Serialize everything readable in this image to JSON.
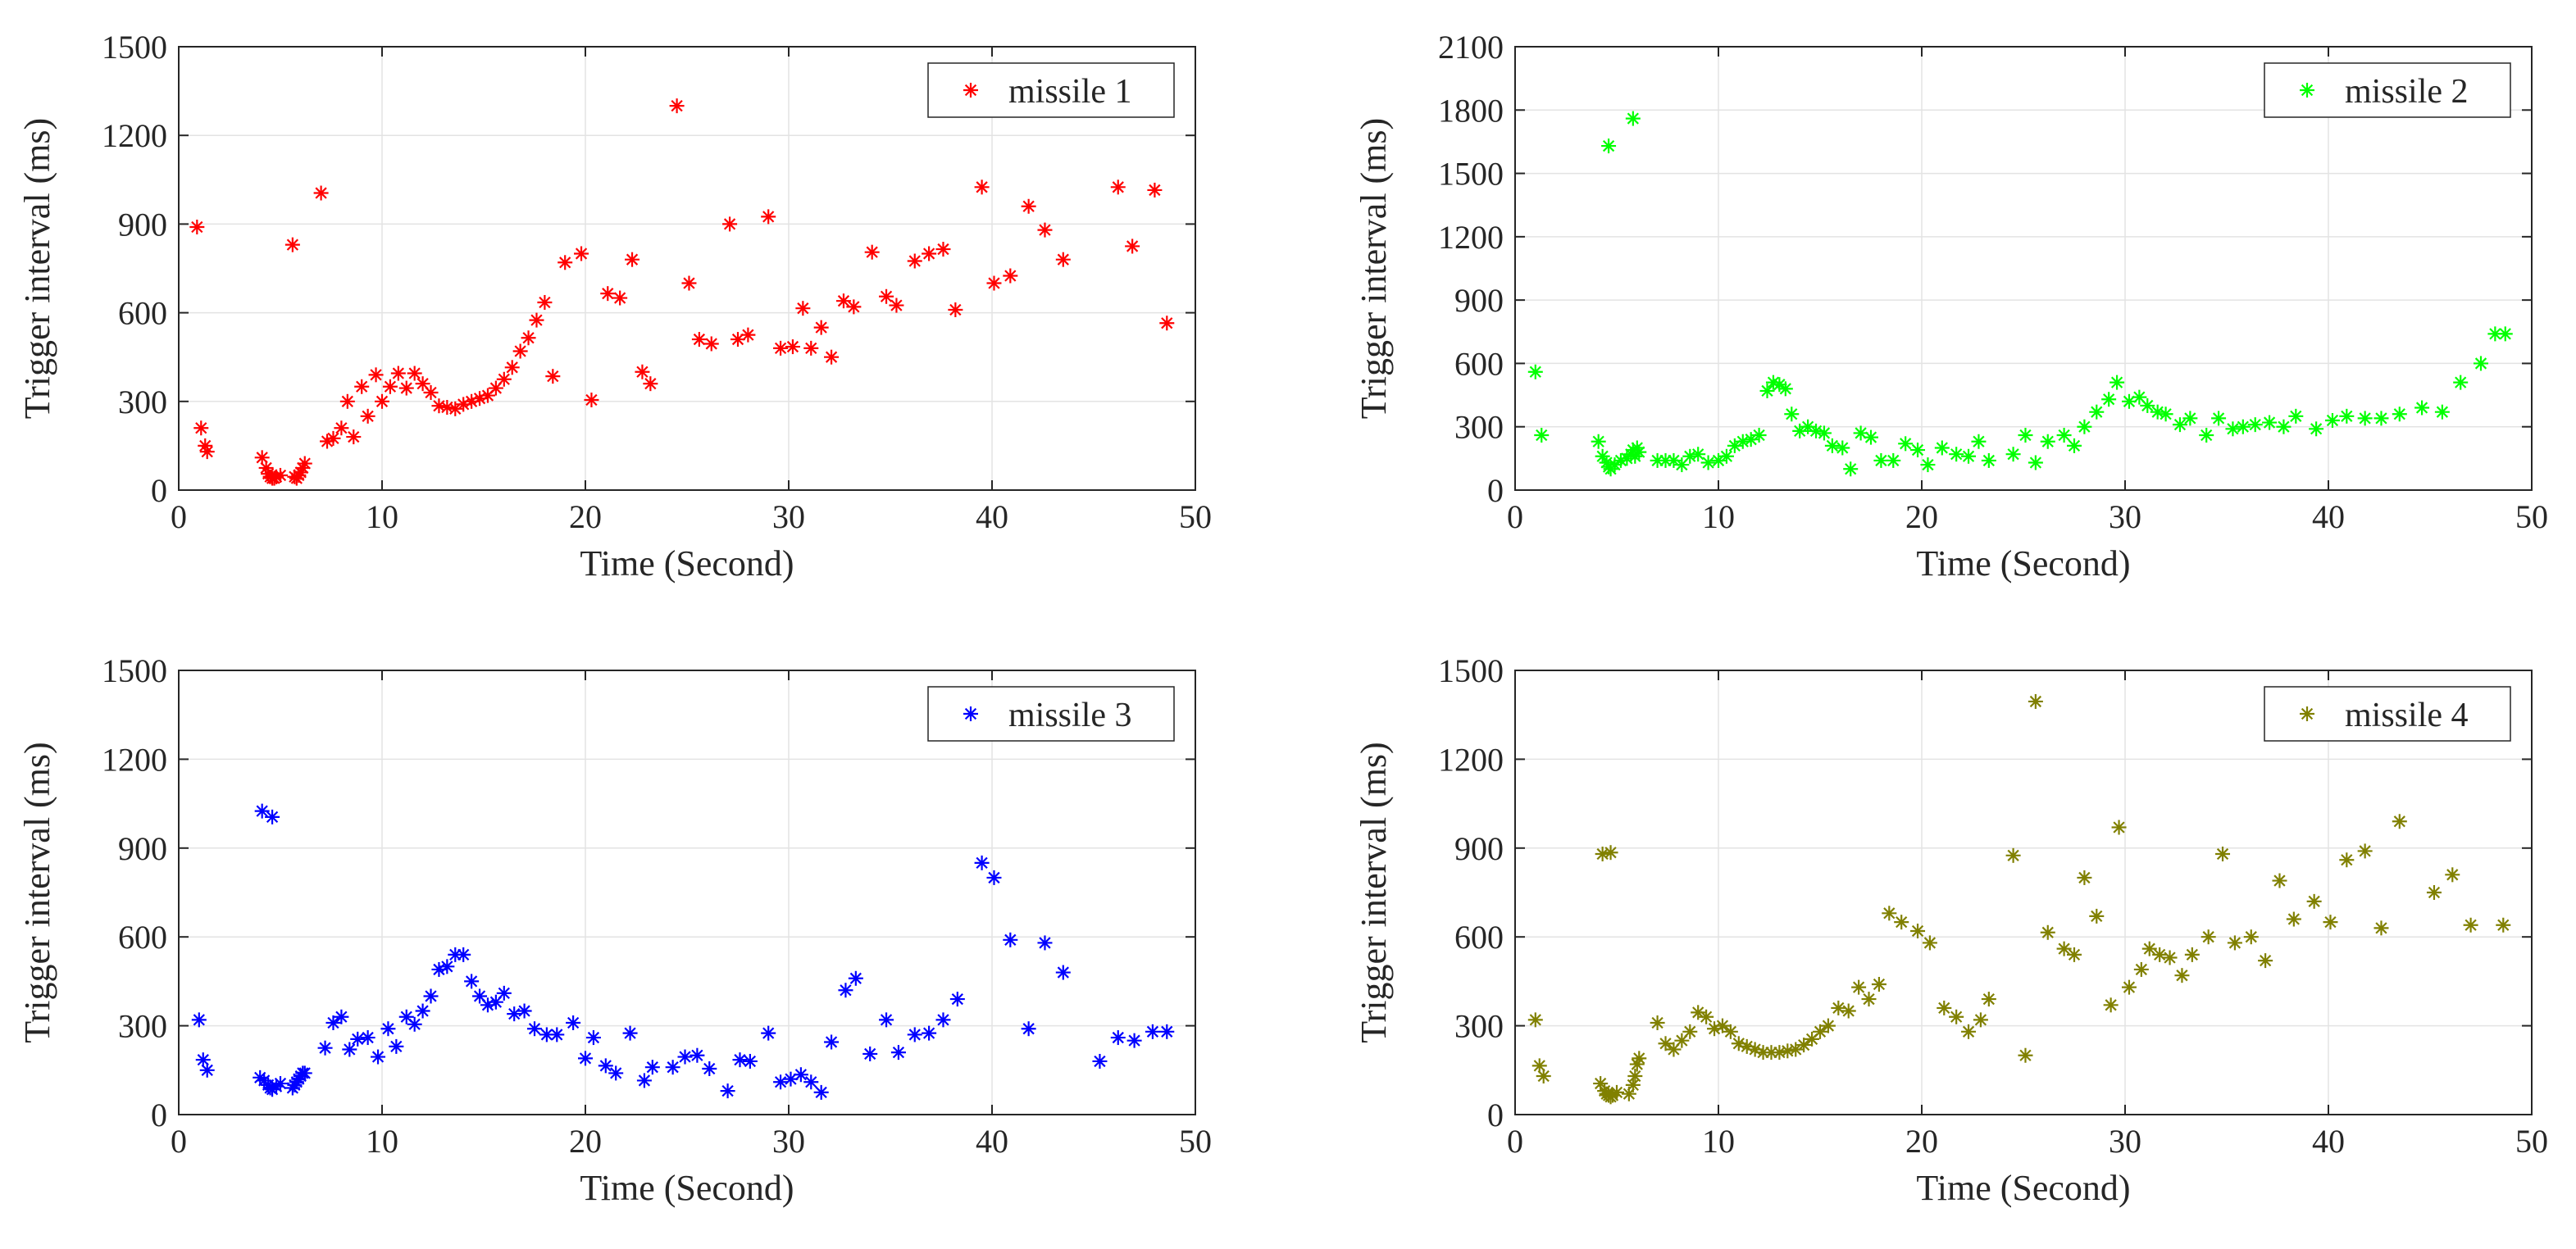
{
  "chart_data": [
    {
      "type": "scatter",
      "marker": "asterisk",
      "color": "#ff0000",
      "legend": "missile 1",
      "legend_position": "top-right",
      "xlabel": "Time (Second)",
      "ylabel": "Trigger interval (ms)",
      "xlim": [
        0,
        50
      ],
      "ylim": [
        0,
        1500
      ],
      "xticks": [
        0,
        10,
        20,
        30,
        40,
        50
      ],
      "yticks": [
        0,
        300,
        600,
        900,
        1200,
        1500
      ],
      "grid": true,
      "x": [
        0.9,
        1.1,
        1.3,
        1.4,
        4.1,
        4.3,
        4.4,
        4.5,
        4.6,
        4.7,
        4.8,
        5.0,
        5.6,
        5.7,
        5.8,
        5.9,
        6.0,
        6.1,
        6.2,
        7.0,
        7.3,
        7.6,
        8.0,
        8.3,
        8.6,
        9.0,
        9.3,
        9.7,
        10.0,
        10.4,
        10.8,
        11.2,
        11.6,
        12.0,
        12.4,
        12.8,
        13.2,
        13.6,
        14.0,
        14.4,
        14.8,
        15.2,
        15.6,
        16.0,
        16.4,
        16.8,
        17.2,
        17.6,
        18.0,
        18.4,
        19.0,
        19.8,
        20.3,
        21.1,
        21.7,
        22.3,
        22.8,
        23.2,
        24.5,
        25.1,
        25.6,
        26.2,
        27.1,
        27.5,
        28.0,
        29.0,
        29.6,
        30.2,
        30.7,
        31.1,
        31.6,
        32.1,
        32.7,
        33.2,
        34.1,
        34.8,
        35.3,
        36.2,
        36.9,
        37.6,
        38.2,
        39.5,
        40.1,
        40.9,
        41.8,
        42.6,
        43.5,
        46.2,
        46.9,
        48.0,
        48.6
      ],
      "y": [
        890,
        210,
        150,
        130,
        110,
        75,
        55,
        45,
        40,
        40,
        45,
        50,
        830,
        45,
        40,
        50,
        60,
        75,
        90,
        1005,
        165,
        175,
        210,
        300,
        180,
        350,
        250,
        390,
        300,
        350,
        395,
        345,
        395,
        360,
        330,
        285,
        280,
        275,
        290,
        300,
        310,
        320,
        345,
        375,
        415,
        470,
        515,
        575,
        635,
        385,
        770,
        800,
        305,
        665,
        650,
        780,
        400,
        360,
        1300,
        700,
        510,
        495,
        900,
        510,
        525,
        925,
        480,
        485,
        615,
        480,
        550,
        450,
        640,
        620,
        805,
        655,
        625,
        775,
        800,
        815,
        610,
        1025,
        700,
        725,
        960,
        880,
        780,
        1025,
        825,
        1015,
        565
      ]
    },
    {
      "type": "scatter",
      "marker": "asterisk",
      "color": "#00ff00",
      "legend": "missile 2",
      "legend_position": "top-right",
      "xlabel": "Time (Second)",
      "ylabel": "Trigger interval (ms)",
      "xlim": [
        0,
        50
      ],
      "ylim": [
        0,
        2100
      ],
      "xticks": [
        0,
        10,
        20,
        30,
        40,
        50
      ],
      "yticks": [
        0,
        300,
        600,
        900,
        1200,
        1500,
        1800,
        2100
      ],
      "grid": true,
      "x": [
        1.0,
        1.3,
        4.1,
        4.3,
        4.5,
        4.6,
        4.7,
        4.9,
        5.2,
        5.5,
        5.7,
        5.8,
        5.9,
        6.0,
        6.1,
        4.6,
        5.8,
        7.0,
        7.4,
        7.8,
        8.2,
        8.6,
        9.0,
        9.5,
        10.0,
        10.4,
        10.8,
        11.2,
        11.6,
        12.0,
        12.4,
        12.7,
        13.0,
        13.3,
        13.6,
        14.0,
        14.4,
        14.8,
        15.2,
        15.6,
        16.1,
        16.5,
        17.0,
        17.5,
        18.0,
        18.6,
        19.2,
        19.8,
        20.3,
        21.0,
        21.7,
        22.3,
        22.8,
        23.3,
        24.5,
        25.1,
        25.6,
        26.2,
        27.0,
        27.5,
        28.0,
        28.6,
        29.2,
        29.6,
        30.2,
        30.7,
        31.1,
        31.6,
        32.0,
        32.7,
        33.2,
        34.0,
        34.6,
        35.3,
        35.8,
        36.4,
        37.1,
        37.8,
        38.4,
        39.4,
        40.2,
        40.9,
        41.8,
        42.6,
        43.5,
        44.6,
        45.6,
        46.5,
        47.5,
        48.2,
        48.7
      ],
      "y": [
        560,
        260,
        230,
        160,
        130,
        110,
        100,
        120,
        140,
        150,
        170,
        190,
        160,
        200,
        180,
        1630,
        1760,
        140,
        140,
        140,
        120,
        160,
        170,
        130,
        140,
        160,
        210,
        230,
        240,
        260,
        470,
        510,
        500,
        480,
        360,
        280,
        300,
        280,
        270,
        210,
        200,
        100,
        270,
        250,
        140,
        140,
        220,
        190,
        120,
        200,
        170,
        160,
        230,
        140,
        170,
        260,
        130,
        230,
        260,
        210,
        300,
        370,
        430,
        510,
        420,
        440,
        400,
        370,
        360,
        310,
        340,
        260,
        340,
        290,
        300,
        310,
        320,
        300,
        350,
        290,
        330,
        350,
        340,
        340,
        360,
        390,
        370,
        510,
        600,
        740,
        740
      ]
    },
    {
      "type": "scatter",
      "marker": "asterisk",
      "color": "#0000ff",
      "legend": "missile 3",
      "legend_position": "top-right",
      "xlabel": "Time (Second)",
      "ylabel": "Trigger interval (ms)",
      "xlim": [
        0,
        50
      ],
      "ylim": [
        0,
        1500
      ],
      "xticks": [
        0,
        10,
        20,
        30,
        40,
        50
      ],
      "yticks": [
        0,
        300,
        600,
        900,
        1200,
        1500
      ],
      "grid": true,
      "x": [
        1.0,
        1.2,
        1.4,
        4.0,
        4.2,
        4.4,
        4.5,
        4.6,
        4.8,
        5.0,
        5.6,
        5.7,
        5.8,
        5.9,
        6.0,
        6.1,
        6.2,
        4.1,
        4.6,
        7.2,
        7.6,
        8.0,
        8.4,
        8.8,
        9.3,
        9.8,
        10.3,
        10.7,
        11.2,
        11.6,
        12.0,
        12.4,
        12.8,
        13.2,
        13.6,
        14.0,
        14.4,
        14.8,
        15.2,
        15.6,
        16.0,
        16.5,
        17.0,
        17.5,
        18.1,
        18.6,
        19.4,
        20.0,
        20.4,
        21.0,
        21.5,
        22.2,
        22.9,
        23.3,
        24.3,
        24.9,
        25.5,
        26.1,
        27.0,
        27.6,
        28.1,
        29.0,
        29.6,
        30.1,
        30.6,
        31.1,
        31.6,
        32.1,
        32.8,
        33.3,
        34.0,
        34.8,
        35.4,
        36.2,
        36.9,
        37.6,
        38.3,
        39.5,
        40.1,
        40.9,
        41.8,
        42.6,
        43.5,
        45.3,
        46.2,
        47.0,
        47.9,
        48.6
      ],
      "y": [
        320,
        185,
        150,
        125,
        115,
        100,
        90,
        85,
        95,
        105,
        90,
        100,
        110,
        120,
        130,
        140,
        140,
        1025,
        1005,
        225,
        310,
        330,
        220,
        255,
        260,
        195,
        290,
        230,
        330,
        305,
        350,
        400,
        490,
        500,
        540,
        540,
        450,
        400,
        370,
        380,
        410,
        340,
        350,
        290,
        270,
        270,
        310,
        190,
        260,
        165,
        140,
        275,
        115,
        160,
        160,
        195,
        200,
        155,
        80,
        185,
        180,
        275,
        110,
        120,
        135,
        110,
        75,
        245,
        420,
        460,
        205,
        320,
        210,
        270,
        275,
        320,
        390,
        850,
        800,
        590,
        290,
        580,
        480,
        180,
        260,
        250,
        280,
        280
      ]
    },
    {
      "type": "scatter",
      "marker": "asterisk",
      "color": "#808000",
      "legend": "missile 4",
      "legend_position": "top-right",
      "xlabel": "Time (Second)",
      "ylabel": "Trigger interval (ms)",
      "xlim": [
        0,
        50
      ],
      "ylim": [
        0,
        1500
      ],
      "xticks": [
        0,
        10,
        20,
        30,
        40,
        50
      ],
      "yticks": [
        0,
        300,
        600,
        900,
        1200,
        1500
      ],
      "grid": true,
      "x": [
        1.0,
        1.2,
        1.4,
        4.2,
        4.4,
        4.5,
        4.6,
        4.7,
        4.8,
        5.0,
        5.6,
        5.8,
        5.9,
        6.0,
        6.1,
        4.3,
        4.7,
        7.0,
        7.4,
        7.8,
        8.2,
        8.6,
        9.0,
        9.4,
        9.8,
        10.2,
        10.6,
        11.0,
        11.4,
        11.8,
        12.2,
        12.6,
        13.0,
        13.4,
        13.8,
        14.2,
        14.6,
        15.0,
        15.4,
        15.9,
        16.4,
        16.9,
        17.4,
        17.9,
        18.4,
        19.0,
        19.8,
        20.4,
        21.1,
        21.7,
        22.3,
        22.9,
        23.3,
        24.5,
        25.1,
        25.6,
        26.2,
        27.0,
        27.5,
        28.0,
        28.6,
        29.3,
        29.7,
        30.2,
        30.8,
        31.2,
        31.7,
        32.2,
        32.8,
        33.3,
        34.1,
        34.8,
        35.4,
        36.2,
        36.9,
        37.6,
        38.3,
        39.3,
        40.1,
        40.9,
        41.8,
        42.6,
        43.5,
        45.2,
        46.1,
        47.0,
        48.6
      ],
      "y": [
        320,
        165,
        130,
        105,
        80,
        70,
        65,
        60,
        65,
        75,
        70,
        100,
        130,
        170,
        190,
        880,
        885,
        310,
        240,
        220,
        250,
        280,
        345,
        330,
        290,
        300,
        280,
        240,
        230,
        220,
        210,
        210,
        210,
        215,
        220,
        235,
        255,
        280,
        300,
        360,
        350,
        430,
        390,
        440,
        680,
        650,
        620,
        580,
        360,
        330,
        280,
        320,
        390,
        875,
        200,
        1395,
        615,
        560,
        540,
        800,
        670,
        370,
        970,
        430,
        490,
        560,
        540,
        530,
        470,
        540,
        600,
        880,
        580,
        600,
        520,
        790,
        660,
        720,
        650,
        860,
        890,
        630,
        990,
        750,
        810,
        640,
        640
      ]
    }
  ]
}
